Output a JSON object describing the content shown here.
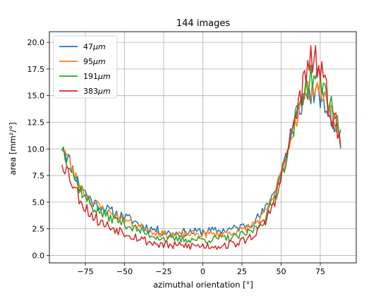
{
  "chart_data": {
    "type": "line",
    "title": "144 images",
    "xlabel": "azimuthal orientation [°]",
    "ylabel": "area [mm²/°]",
    "xlim": [
      -98,
      98
    ],
    "ylim": [
      -0.7,
      21.0
    ],
    "xticks": [
      -75,
      -50,
      -25,
      0,
      25,
      50,
      75
    ],
    "xtick_labels": [
      "−75",
      "−50",
      "−25",
      "0",
      "25",
      "50",
      "75"
    ],
    "yticks": [
      0.0,
      2.5,
      5.0,
      7.5,
      10.0,
      12.5,
      15.0,
      17.5,
      20.0
    ],
    "ytick_labels": [
      "0.0",
      "2.5",
      "5.0",
      "7.5",
      "10.0",
      "12.5",
      "15.0",
      "17.5",
      "20.0"
    ],
    "grid": true,
    "legend_position": "top-left",
    "x_step": 1,
    "x_start": -90,
    "series": [
      {
        "name": "47μm",
        "color": "#1f77b4",
        "noise": 0.6,
        "seed": 11,
        "x": [
          -90,
          -85,
          -80,
          -75,
          -70,
          -65,
          -60,
          -55,
          -50,
          -45,
          -40,
          -35,
          -30,
          -25,
          -20,
          -15,
          -10,
          -5,
          0,
          5,
          10,
          15,
          20,
          25,
          30,
          35,
          40,
          45,
          50,
          55,
          60,
          65,
          70,
          75,
          80,
          85,
          88
        ],
        "y": [
          10.5,
          8.8,
          7.0,
          5.9,
          5.0,
          4.6,
          4.2,
          3.9,
          3.6,
          3.3,
          2.9,
          2.6,
          2.4,
          2.2,
          2.1,
          2.1,
          2.2,
          2.2,
          2.3,
          2.3,
          2.3,
          2.4,
          2.5,
          2.7,
          3.0,
          3.5,
          4.3,
          5.8,
          7.8,
          10.5,
          13.0,
          15.0,
          15.3,
          14.8,
          13.5,
          12.0,
          10.8
        ]
      },
      {
        "name": "95μm",
        "color": "#ff7f0e",
        "noise": 0.55,
        "seed": 23,
        "x": [
          -90,
          -85,
          -80,
          -75,
          -70,
          -65,
          -60,
          -55,
          -50,
          -45,
          -40,
          -35,
          -30,
          -25,
          -20,
          -15,
          -10,
          -5,
          0,
          5,
          10,
          15,
          20,
          25,
          30,
          35,
          40,
          45,
          50,
          55,
          60,
          65,
          70,
          75,
          80,
          85,
          88
        ],
        "y": [
          10.4,
          8.7,
          6.9,
          5.8,
          4.9,
          4.5,
          4.0,
          3.7,
          3.4,
          3.0,
          2.7,
          2.4,
          2.2,
          2.0,
          1.9,
          1.9,
          2.0,
          2.0,
          2.0,
          2.0,
          2.0,
          2.1,
          2.2,
          2.4,
          2.7,
          3.2,
          4.0,
          5.5,
          7.6,
          10.3,
          13.0,
          15.2,
          15.9,
          15.6,
          14.0,
          12.5,
          10.5
        ]
      },
      {
        "name": "191μm",
        "color": "#2ca02c",
        "noise": 0.6,
        "seed": 37,
        "x": [
          -90,
          -85,
          -80,
          -75,
          -70,
          -65,
          -60,
          -55,
          -50,
          -45,
          -40,
          -35,
          -30,
          -25,
          -20,
          -15,
          -10,
          -5,
          0,
          5,
          10,
          15,
          20,
          25,
          30,
          35,
          40,
          45,
          50,
          55,
          60,
          65,
          70,
          75,
          80,
          85,
          88
        ],
        "y": [
          10.3,
          8.5,
          6.7,
          5.4,
          4.5,
          4.0,
          3.6,
          3.3,
          3.0,
          2.6,
          2.3,
          2.0,
          1.8,
          1.6,
          1.5,
          1.5,
          1.5,
          1.5,
          1.5,
          1.5,
          1.6,
          1.6,
          1.7,
          1.9,
          2.2,
          2.7,
          3.5,
          5.0,
          7.3,
          10.3,
          13.3,
          15.8,
          16.8,
          16.5,
          14.8,
          13.2,
          11.0
        ]
      },
      {
        "name": "383μm",
        "color": "#d62728",
        "noise": 0.75,
        "seed": 53,
        "x": [
          -90,
          -85,
          -80,
          -75,
          -70,
          -65,
          -60,
          -55,
          -50,
          -45,
          -40,
          -35,
          -30,
          -25,
          -20,
          -15,
          -10,
          -5,
          0,
          5,
          10,
          15,
          20,
          25,
          30,
          35,
          40,
          45,
          50,
          55,
          60,
          65,
          70,
          75,
          80,
          85,
          88
        ],
        "y": [
          9.0,
          7.5,
          5.8,
          4.5,
          3.7,
          3.1,
          2.7,
          2.5,
          2.2,
          1.9,
          1.6,
          1.3,
          1.1,
          1.0,
          0.9,
          0.9,
          0.9,
          0.9,
          0.9,
          0.9,
          0.9,
          1.0,
          1.1,
          1.3,
          1.7,
          2.3,
          3.2,
          4.8,
          7.3,
          10.4,
          13.6,
          16.4,
          18.6,
          17.3,
          14.5,
          12.3,
          10.3
        ]
      }
    ]
  }
}
